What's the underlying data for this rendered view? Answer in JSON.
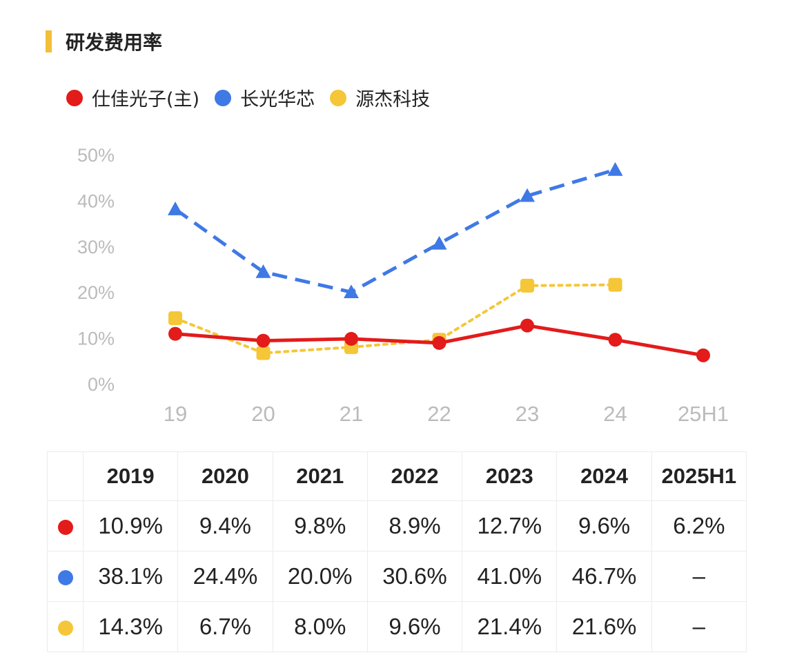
{
  "title": "研发费用率",
  "colors": {
    "title_bar": "#f4bd3a"
  },
  "legend": [
    {
      "label": "仕佳光子(主)",
      "color": "#e31b1b"
    },
    {
      "label": "长光华芯",
      "color": "#3f79e6"
    },
    {
      "label": "源杰科技",
      "color": "#f5c637"
    }
  ],
  "chart_data": {
    "type": "line",
    "title": "研发费用率",
    "categories": [
      "19",
      "20",
      "21",
      "22",
      "23",
      "24",
      "25H1"
    ],
    "y_ticks": [
      "0%",
      "10%",
      "20%",
      "30%",
      "40%",
      "50%"
    ],
    "ylim": [
      0,
      50
    ],
    "xlabel": "",
    "ylabel": "",
    "grid": false,
    "legend_position": "top-left",
    "series": [
      {
        "name": "仕佳光子(主)",
        "color": "#e31b1b",
        "style": "solid",
        "marker": "circle",
        "values": [
          10.9,
          9.4,
          9.8,
          8.9,
          12.7,
          9.6,
          6.2
        ]
      },
      {
        "name": "长光华芯",
        "color": "#3f79e6",
        "style": "dashed",
        "marker": "triangle",
        "values": [
          38.1,
          24.4,
          20.0,
          30.6,
          41.0,
          46.7,
          null
        ]
      },
      {
        "name": "源杰科技",
        "color": "#f5c637",
        "style": "dotted",
        "marker": "square",
        "values": [
          14.3,
          6.7,
          8.0,
          9.6,
          21.4,
          21.6,
          null
        ]
      }
    ]
  },
  "table": {
    "headers": [
      "2019",
      "2020",
      "2021",
      "2022",
      "2023",
      "2024",
      "2025H1"
    ],
    "rows": [
      {
        "color": "#e31b1b",
        "cells": [
          "10.9%",
          "9.4%",
          "9.8%",
          "8.9%",
          "12.7%",
          "9.6%",
          "6.2%"
        ]
      },
      {
        "color": "#3f79e6",
        "cells": [
          "38.1%",
          "24.4%",
          "20.0%",
          "30.6%",
          "41.0%",
          "46.7%",
          "–"
        ]
      },
      {
        "color": "#f5c637",
        "cells": [
          "14.3%",
          "6.7%",
          "8.0%",
          "9.6%",
          "21.4%",
          "21.6%",
          "–"
        ]
      }
    ]
  }
}
